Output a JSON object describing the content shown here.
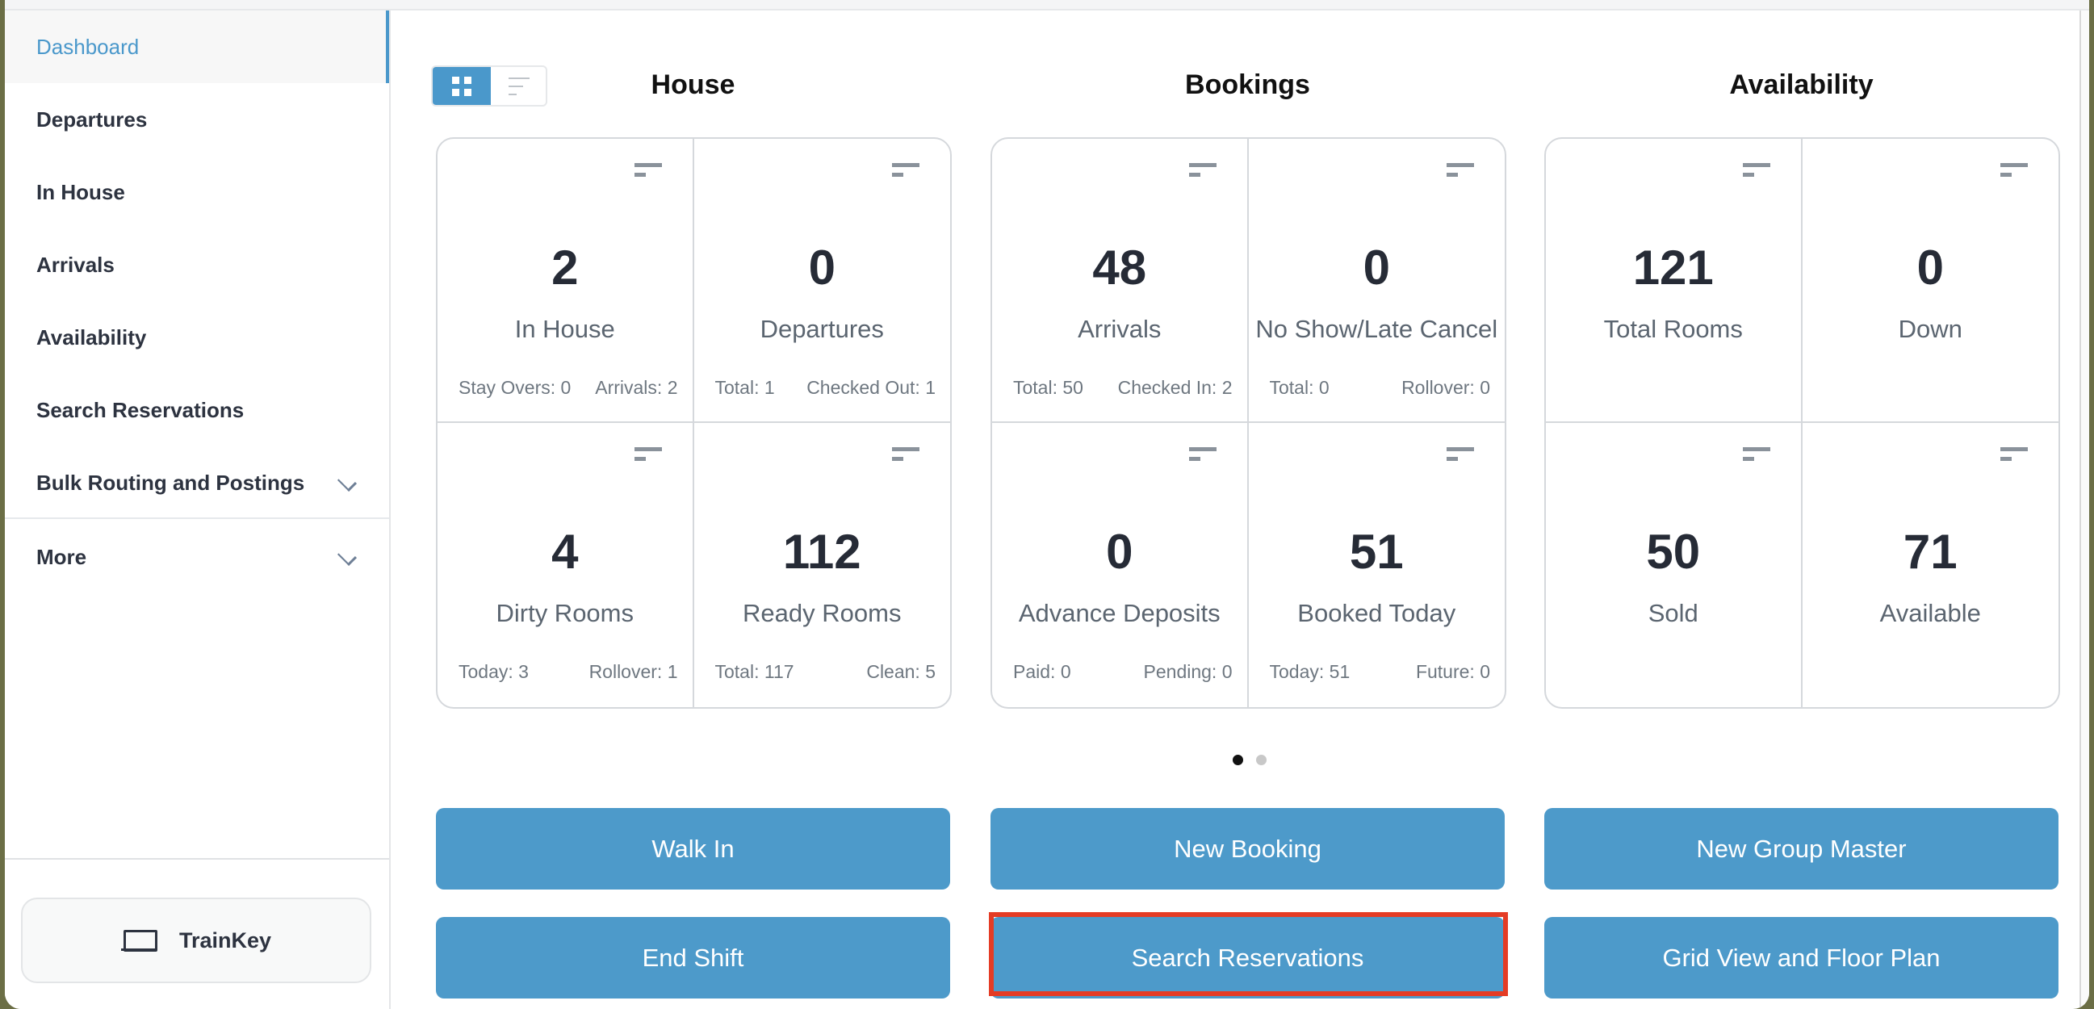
{
  "sidebar": {
    "items": [
      {
        "label": "Dashboard",
        "active": true
      },
      {
        "label": "Departures"
      },
      {
        "label": "In House"
      },
      {
        "label": "Arrivals"
      },
      {
        "label": "Availability"
      },
      {
        "label": "Search Reservations"
      },
      {
        "label": "Bulk Routing and Postings",
        "expandable": true
      },
      {
        "label": "More",
        "expandable": true
      }
    ],
    "footer_button": "TrainKey"
  },
  "view_toggle": {
    "selected": "grid",
    "options": [
      "grid",
      "list"
    ]
  },
  "sections": [
    {
      "title": "House",
      "cells": [
        {
          "value": "2",
          "label": "In House",
          "left": "Stay Overs: 0",
          "right": "Arrivals: 2"
        },
        {
          "value": "0",
          "label": "Departures",
          "left": "Total: 1",
          "right": "Checked Out: 1"
        },
        {
          "value": "4",
          "label": "Dirty Rooms",
          "left": "Today: 3",
          "right": "Rollover: 1"
        },
        {
          "value": "112",
          "label": "Ready Rooms",
          "left": "Total: 117",
          "right": "Clean: 5"
        }
      ]
    },
    {
      "title": "Bookings",
      "cells": [
        {
          "value": "48",
          "label": "Arrivals",
          "left": "Total: 50",
          "right": "Checked In: 2"
        },
        {
          "value": "0",
          "label": "No Show/Late Cancel",
          "left": "Total: 0",
          "right": "Rollover: 0"
        },
        {
          "value": "0",
          "label": "Advance Deposits",
          "left": "Paid: 0",
          "right": "Pending: 0"
        },
        {
          "value": "51",
          "label": "Booked Today",
          "left": "Today: 51",
          "right": "Future: 0"
        }
      ]
    },
    {
      "title": "Availability",
      "cells": [
        {
          "value": "121",
          "label": "Total Rooms"
        },
        {
          "value": "0",
          "label": "Down"
        },
        {
          "value": "50",
          "label": "Sold"
        },
        {
          "value": "71",
          "label": "Available"
        }
      ]
    }
  ],
  "pager": {
    "pages": 2,
    "current": 1
  },
  "actions": [
    "Walk In",
    "New Booking",
    "New Group Master",
    "End Shift",
    "Search Reservations",
    "Grid View and Floor Plan"
  ],
  "highlighted_action": "Search Reservations",
  "colors": {
    "accent": "#4a98cb",
    "button": "#4d9aca",
    "highlight": "#e43c25"
  }
}
